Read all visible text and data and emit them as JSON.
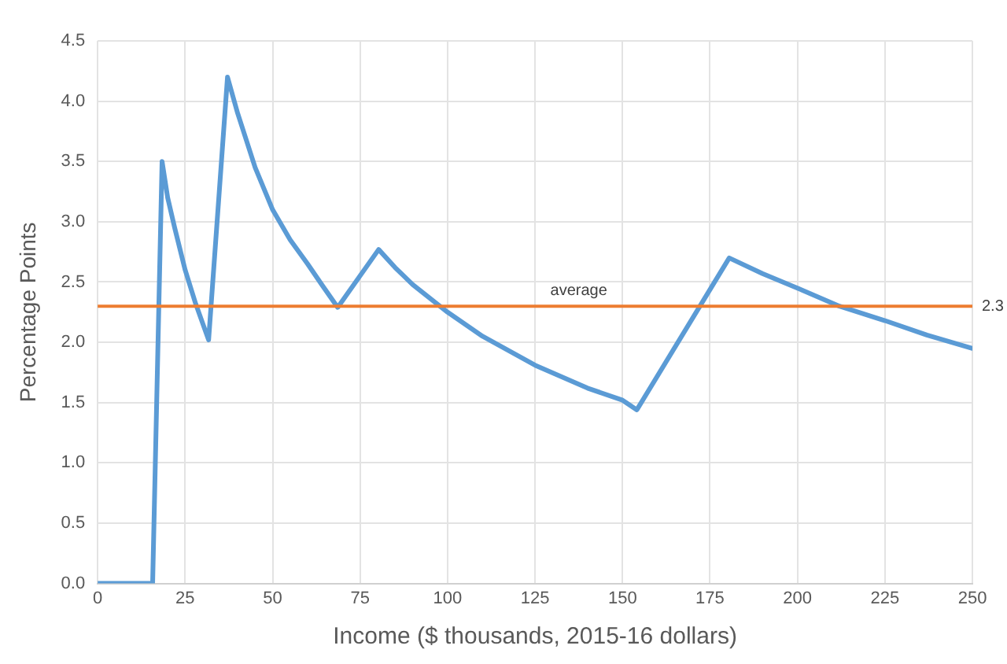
{
  "chart_data": {
    "type": "line",
    "xlabel": "Income ($ thousands, 2015-16 dollars)",
    "ylabel": "Percentage Points",
    "x": [
      0,
      15.7,
      18.4,
      20,
      22,
      25,
      28,
      31.7,
      37.1,
      40,
      45,
      50,
      55,
      60,
      64,
      68.6,
      80.3,
      85,
      90,
      100,
      110,
      125,
      140,
      150,
      154.1,
      180.5,
      190,
      200,
      212,
      225,
      237,
      250
    ],
    "series": [
      {
        "color": "#5b9bd5",
        "values": [
          0,
          0,
          3.5,
          3.2,
          2.95,
          2.6,
          2.32,
          2.02,
          4.2,
          3.9,
          3.45,
          3.1,
          2.85,
          2.65,
          2.48,
          2.29,
          2.77,
          2.62,
          2.48,
          2.25,
          2.05,
          1.81,
          1.62,
          1.52,
          1.44,
          2.7,
          2.57,
          2.45,
          2.3,
          2.18,
          2.06,
          1.95
        ]
      }
    ],
    "xlim": [
      0,
      250
    ],
    "xticks": [
      0,
      25,
      50,
      75,
      100,
      125,
      150,
      175,
      200,
      225,
      250
    ],
    "ylim": [
      0,
      4.5
    ],
    "yticks": [
      {
        "value": 0,
        "label": "0.0"
      },
      0.5,
      {
        "value": 1,
        "label": "1.0"
      },
      1.5,
      {
        "value": 2,
        "label": "2.0"
      },
      2.5,
      {
        "value": 3,
        "label": "3.0"
      },
      3.5,
      {
        "value": 4,
        "label": "4.0"
      },
      4.5
    ],
    "grid": true,
    "legend": false,
    "marker": "none",
    "line_style": "solid",
    "ref_lines": [
      {
        "axis": "y",
        "value": 2.3,
        "label": "average",
        "color": "#ed7d31"
      }
    ],
    "annotations": [
      {
        "text": "2.3",
        "x": 250,
        "y": 2.3
      }
    ]
  }
}
